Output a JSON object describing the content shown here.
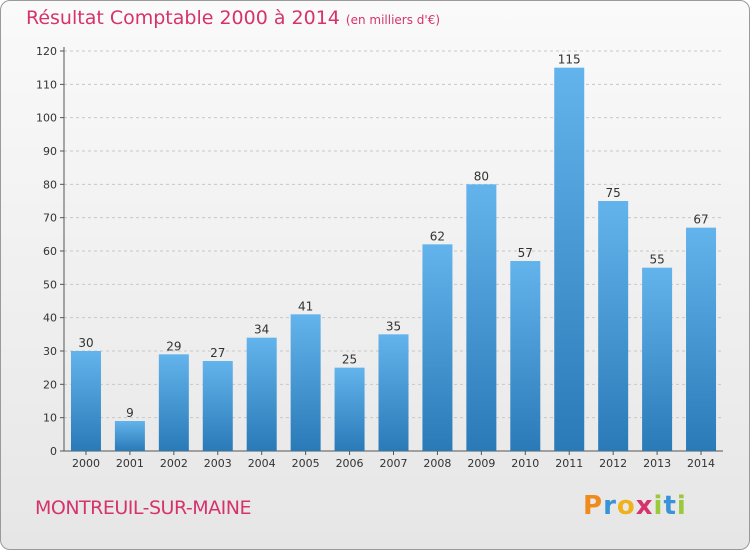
{
  "title": "Résultat Comptable 2000 à 2014",
  "subtitle": "(en milliers d'€)",
  "footer_place": "MONTREUIL-SUR-MAINE",
  "logo": {
    "text": "Proxiti",
    "letters": [
      "P",
      "r",
      "o",
      "x",
      "i",
      "t",
      "i"
    ],
    "colors": [
      "#f08a1c",
      "#3a93d6",
      "#f0b21c",
      "#d6336c",
      "#9ac93a",
      "#3a93d6",
      "#9ac93a"
    ]
  },
  "colors": {
    "accent": "#d6336c",
    "bar_light": "#63b3ec",
    "bar_dark": "#2a7ab8"
  },
  "chart_data": {
    "type": "bar",
    "title": "Résultat Comptable 2000 à 2014",
    "subtitle": "(en milliers d'€)",
    "categories": [
      "2000",
      "2001",
      "2002",
      "2003",
      "2004",
      "2005",
      "2006",
      "2007",
      "2008",
      "2009",
      "2010",
      "2011",
      "2012",
      "2013",
      "2014"
    ],
    "values": [
      30,
      9,
      29,
      27,
      34,
      41,
      25,
      35,
      62,
      80,
      57,
      115,
      75,
      55,
      67
    ],
    "ylim": [
      0,
      120
    ],
    "yticks": [
      0,
      10,
      20,
      30,
      40,
      50,
      60,
      70,
      80,
      90,
      100,
      110,
      120
    ],
    "grid": true,
    "data_labels": true
  }
}
